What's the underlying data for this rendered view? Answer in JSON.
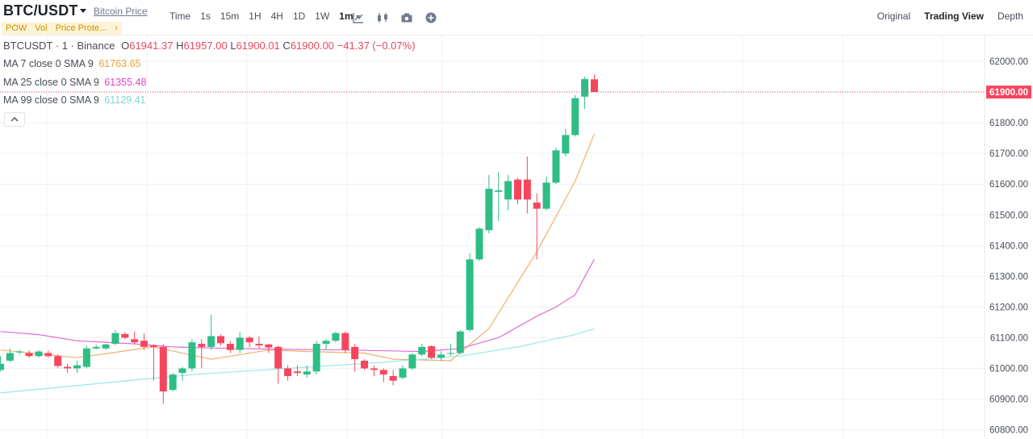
{
  "header": {
    "pair": "BTC/USDT",
    "price_link": "Bitcoin Price",
    "tags": [
      "POW",
      "Vol",
      "Price Prote...",
      "›"
    ],
    "intervals": [
      "Time",
      "1s",
      "15m",
      "1H",
      "4H",
      "1D",
      "1W",
      "1m"
    ],
    "active_interval": "1m",
    "tools": [
      "indicator-icon",
      "candle-type-icon",
      "camera-icon",
      "add-icon"
    ],
    "views": [
      "Original",
      "Trading View",
      "Depth"
    ],
    "active_view": "Trading View"
  },
  "legend": {
    "symbol": "BTCUSDT · 1 · Binance",
    "o_label": "O",
    "o": "61941.37",
    "h_label": "H",
    "h": "61957.00",
    "l_label": "L",
    "l": "61900.01",
    "c_label": "C",
    "c": "61900.00",
    "change": "−41.37 (−0.07%)",
    "ma7_label": "MA 7 close 0 SMA 9",
    "ma7": "61763.65",
    "ma25_label": "MA 25 close 0 SMA 9",
    "ma25": "61355.48",
    "ma99_label": "MA 99 close 0 SMA 9",
    "ma99": "61129.41"
  },
  "colors": {
    "up": "#2ebd85",
    "down": "#f6465d",
    "ma7": "#f0b16f",
    "ma25": "#e46ad9",
    "ma99": "#9be8e6",
    "ma7_text": "#e8a33b",
    "ma25_text": "#d946c8",
    "ma99_text": "#7fd8d5",
    "last_price_bg": "#f6465d"
  },
  "chart_data": {
    "type": "candlestick",
    "title": "BTCUSDT · 1 · Binance",
    "ylim": [
      60770,
      62040
    ],
    "y_ticks": [
      60800,
      60900,
      61000,
      61100,
      61200,
      61300,
      61400,
      61500,
      61600,
      61700,
      61800,
      61900,
      62000
    ],
    "y_tick_labels": [
      "60800.00",
      "60900.00",
      "61000.00",
      "61100.00",
      "61200.00",
      "61300.00",
      "61400.00",
      "61500.00",
      "61600.00",
      "61700.00",
      "61800.00",
      "61900.00",
      "62000.00"
    ],
    "last_price": 61900.0,
    "last_price_label": "61900.00",
    "candles": [
      {
        "o": 60995,
        "h": 61040,
        "l": 60990,
        "c": 61015
      },
      {
        "o": 61025,
        "h": 61065,
        "l": 61020,
        "c": 61050
      },
      {
        "o": 61052,
        "h": 61060,
        "l": 61045,
        "c": 61055
      },
      {
        "o": 61050,
        "h": 61058,
        "l": 61035,
        "c": 61040
      },
      {
        "o": 61040,
        "h": 61060,
        "l": 61035,
        "c": 61055
      },
      {
        "o": 61050,
        "h": 61058,
        "l": 61035,
        "c": 61040
      },
      {
        "o": 61040,
        "h": 61045,
        "l": 61000,
        "c": 61008
      },
      {
        "o": 61005,
        "h": 61015,
        "l": 60985,
        "c": 61000
      },
      {
        "o": 61000,
        "h": 61025,
        "l": 60985,
        "c": 61010
      },
      {
        "o": 61005,
        "h": 61075,
        "l": 61000,
        "c": 61065
      },
      {
        "o": 61065,
        "h": 61078,
        "l": 61062,
        "c": 61070
      },
      {
        "o": 61065,
        "h": 61080,
        "l": 61060,
        "c": 61078
      },
      {
        "o": 61080,
        "h": 61125,
        "l": 61075,
        "c": 61115
      },
      {
        "o": 61112,
        "h": 61118,
        "l": 61095,
        "c": 61100
      },
      {
        "o": 61095,
        "h": 61120,
        "l": 61080,
        "c": 61085
      },
      {
        "o": 61090,
        "h": 61115,
        "l": 61060,
        "c": 61070
      },
      {
        "o": 61075,
        "h": 61078,
        "l": 60960,
        "c": 61070
      },
      {
        "o": 61070,
        "h": 61080,
        "l": 60885,
        "c": 60925
      },
      {
        "o": 60930,
        "h": 60985,
        "l": 60925,
        "c": 60980
      },
      {
        "o": 60985,
        "h": 61005,
        "l": 60960,
        "c": 61000
      },
      {
        "o": 61000,
        "h": 61095,
        "l": 60990,
        "c": 61085
      },
      {
        "o": 61080,
        "h": 61095,
        "l": 61000,
        "c": 61070
      },
      {
        "o": 61070,
        "h": 61175,
        "l": 61060,
        "c": 61105
      },
      {
        "o": 61105,
        "h": 61110,
        "l": 61075,
        "c": 61082
      },
      {
        "o": 61080,
        "h": 61090,
        "l": 61050,
        "c": 61060
      },
      {
        "o": 61060,
        "h": 61118,
        "l": 61050,
        "c": 61100
      },
      {
        "o": 61100,
        "h": 61105,
        "l": 61070,
        "c": 61085
      },
      {
        "o": 61080,
        "h": 61105,
        "l": 61065,
        "c": 61075
      },
      {
        "o": 61078,
        "h": 61080,
        "l": 61050,
        "c": 61068
      },
      {
        "o": 61070,
        "h": 61075,
        "l": 60950,
        "c": 61000
      },
      {
        "o": 61000,
        "h": 61010,
        "l": 60960,
        "c": 60975
      },
      {
        "o": 60990,
        "h": 61010,
        "l": 60975,
        "c": 60985
      },
      {
        "o": 60980,
        "h": 61010,
        "l": 60970,
        "c": 60990
      },
      {
        "o": 60990,
        "h": 61090,
        "l": 60980,
        "c": 61080
      },
      {
        "o": 61080,
        "h": 61095,
        "l": 61060,
        "c": 61090
      },
      {
        "o": 61090,
        "h": 61120,
        "l": 61085,
        "c": 61115
      },
      {
        "o": 61115,
        "h": 61120,
        "l": 61050,
        "c": 61060
      },
      {
        "o": 61070,
        "h": 61080,
        "l": 60990,
        "c": 61030
      },
      {
        "o": 61025,
        "h": 61030,
        "l": 60995,
        "c": 61000
      },
      {
        "o": 61000,
        "h": 61010,
        "l": 60975,
        "c": 60995
      },
      {
        "o": 60995,
        "h": 61000,
        "l": 60955,
        "c": 60980
      },
      {
        "o": 60975,
        "h": 60995,
        "l": 60945,
        "c": 60960
      },
      {
        "o": 60970,
        "h": 61010,
        "l": 60965,
        "c": 61000
      },
      {
        "o": 61000,
        "h": 61050,
        "l": 60995,
        "c": 61045
      },
      {
        "o": 61045,
        "h": 61080,
        "l": 61040,
        "c": 61070
      },
      {
        "o": 61072,
        "h": 61075,
        "l": 61030,
        "c": 61035
      },
      {
        "o": 61035,
        "h": 61055,
        "l": 61025,
        "c": 61045
      },
      {
        "o": 61050,
        "h": 61080,
        "l": 61040,
        "c": 61050
      },
      {
        "o": 61050,
        "h": 61125,
        "l": 61045,
        "c": 61120
      },
      {
        "o": 61125,
        "h": 61375,
        "l": 61120,
        "c": 61355
      },
      {
        "o": 61355,
        "h": 61460,
        "l": 61350,
        "c": 61455
      },
      {
        "o": 61450,
        "h": 61630,
        "l": 61440,
        "c": 61585
      },
      {
        "o": 61575,
        "h": 61640,
        "l": 61480,
        "c": 61580
      },
      {
        "o": 61550,
        "h": 61630,
        "l": 61515,
        "c": 61610
      },
      {
        "o": 61615,
        "h": 61620,
        "l": 61535,
        "c": 61550
      },
      {
        "o": 61615,
        "h": 61690,
        "l": 61505,
        "c": 61550
      },
      {
        "o": 61540,
        "h": 61570,
        "l": 61355,
        "c": 61520
      },
      {
        "o": 61520,
        "h": 61625,
        "l": 61515,
        "c": 61605
      },
      {
        "o": 61605,
        "h": 61720,
        "l": 61600,
        "c": 61710
      },
      {
        "o": 61700,
        "h": 61780,
        "l": 61690,
        "c": 61760
      },
      {
        "o": 61760,
        "h": 61890,
        "l": 61755,
        "c": 61880
      },
      {
        "o": 61885,
        "h": 61950,
        "l": 61845,
        "c": 61942
      },
      {
        "o": 61941.37,
        "h": 61957,
        "l": 61900.01,
        "c": 61900
      }
    ],
    "series": [
      {
        "name": "MA 7 close 0 SMA 9",
        "last": 61763.65,
        "points": [
          [
            0,
            61060
          ],
          [
            8,
            61035
          ],
          [
            16,
            61070
          ],
          [
            22,
            61030
          ],
          [
            28,
            61060
          ],
          [
            32,
            61055
          ],
          [
            38,
            61050
          ],
          [
            41,
            61030
          ],
          [
            47,
            61025
          ],
          [
            51,
            61130
          ],
          [
            56,
            61380
          ],
          [
            60,
            61610
          ],
          [
            62,
            61763.65
          ]
        ]
      },
      {
        "name": "MA 25 close 0 SMA 9",
        "last": 61355.48,
        "points": [
          [
            0,
            61120
          ],
          [
            4,
            61110
          ],
          [
            8,
            61090
          ],
          [
            14,
            61080
          ],
          [
            18,
            61070
          ],
          [
            24,
            61065
          ],
          [
            30,
            61062
          ],
          [
            36,
            61060
          ],
          [
            44,
            61055
          ],
          [
            48,
            61065
          ],
          [
            52,
            61100
          ],
          [
            56,
            61170
          ],
          [
            58,
            61200
          ],
          [
            60,
            61240
          ],
          [
            62,
            61355.48
          ]
        ]
      },
      {
        "name": "MA 99 close 0 SMA 9",
        "last": 61129.41,
        "points": [
          [
            0,
            60920
          ],
          [
            10,
            60950
          ],
          [
            20,
            60980
          ],
          [
            30,
            61000
          ],
          [
            40,
            61020
          ],
          [
            48,
            61040
          ],
          [
            54,
            61070
          ],
          [
            60,
            61110
          ],
          [
            62,
            61129.41
          ]
        ]
      }
    ]
  }
}
